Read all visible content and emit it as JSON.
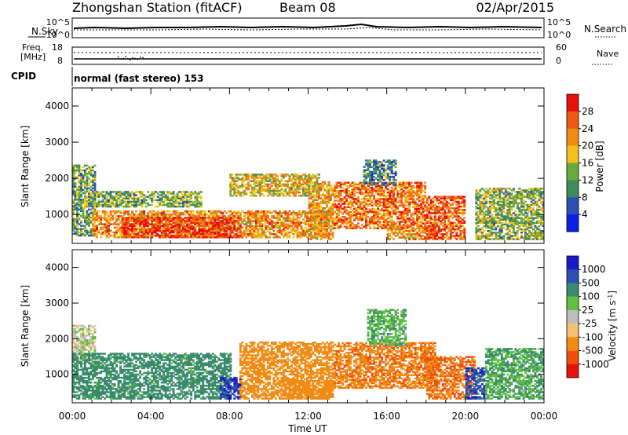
{
  "header": {
    "station": "Zhongshan Station (fitACF)",
    "beam": "Beam 08",
    "date": "02/Apr/2015"
  },
  "top_panels": {
    "nsky_label": "N.Sky",
    "nsky_ticks": [
      "10^5",
      "10^0"
    ],
    "nsky_right_ticks": [
      "10^5",
      "10^0"
    ],
    "nsearch_label": "N.Search",
    "freq_label_1": "Freq.",
    "freq_label_2": "[MHz]",
    "freq_ticks": [
      "18",
      "8"
    ],
    "nave_ticks": [
      "60",
      "0"
    ],
    "nave_label": "Nave",
    "cpid_label": "CPID",
    "cpid_text": "normal (fast stereo) 153"
  },
  "x_axis": {
    "label": "Time UT",
    "ticks": [
      "00:00",
      "04:00",
      "08:00",
      "12:00",
      "16:00",
      "20:00",
      "00:00"
    ]
  },
  "colors": {
    "power_scale": [
      "#0a1ee6",
      "#2c4fb0",
      "#3f8a5c",
      "#6aaa3c",
      "#f2c21a",
      "#f08c14",
      "#f05a10",
      "#e8100c"
    ],
    "velocity_scale": [
      "#e8100c",
      "#f0500e",
      "#f08c14",
      "#f6c070",
      "#bdbdbd",
      "#60c040",
      "#3a8a6e",
      "#2c4fb0",
      "#1a1ac8"
    ]
  },
  "chart_data": [
    {
      "type": "heatmap",
      "name": "power",
      "ylabel": "Slant Range [km]",
      "xlabel": "",
      "xlim": [
        0,
        24
      ],
      "ylim": [
        200,
        4500
      ],
      "y_ticks": [
        "1000",
        "2000",
        "3000",
        "4000"
      ],
      "colorbar": {
        "label": "Power [dB]",
        "ticks": [
          "4",
          "8",
          "12",
          "16",
          "20",
          "24",
          "28"
        ],
        "range": [
          0,
          32
        ]
      },
      "regions": [
        {
          "t0": 0.0,
          "t1": 1.2,
          "r0": 400,
          "r1": 2350,
          "level": 12
        },
        {
          "t0": 0.6,
          "t1": 6.5,
          "r0": 1200,
          "r1": 1650,
          "level": 13
        },
        {
          "t0": 1.0,
          "t1": 13.0,
          "r0": 350,
          "r1": 1100,
          "level": 22
        },
        {
          "t0": 2.5,
          "t1": 8.5,
          "r0": 350,
          "r1": 900,
          "level": 28
        },
        {
          "t0": 8.0,
          "t1": 12.5,
          "r0": 1500,
          "r1": 2100,
          "level": 18
        },
        {
          "t0": 12.0,
          "t1": 13.2,
          "r0": 300,
          "r1": 1900,
          "level": 21
        },
        {
          "t0": 13.3,
          "t1": 18.0,
          "r0": 600,
          "r1": 1900,
          "level": 24
        },
        {
          "t0": 14.8,
          "t1": 16.5,
          "r0": 1800,
          "r1": 2500,
          "level": 10
        },
        {
          "t0": 16.0,
          "t1": 18.5,
          "r0": 300,
          "r1": 700,
          "level": 22
        },
        {
          "t0": 18.0,
          "t1": 20.0,
          "r0": 300,
          "r1": 1500,
          "level": 26
        },
        {
          "t0": 20.5,
          "t1": 24.0,
          "r0": 300,
          "r1": 1700,
          "level": 14
        }
      ]
    },
    {
      "type": "heatmap",
      "name": "velocity",
      "ylabel": "Slant Range [km]",
      "xlabel": "Time UT",
      "xlim": [
        0,
        24
      ],
      "ylim": [
        200,
        4500
      ],
      "y_ticks": [
        "1000",
        "2000",
        "3000",
        "4000"
      ],
      "colorbar": {
        "label": "Velocity [m s^-1]",
        "ticks": [
          "1000",
          "500",
          "100",
          "25",
          "-25",
          "-100",
          "-500",
          "-1000"
        ]
      },
      "regions": [
        {
          "t0": 0.0,
          "t1": 1.2,
          "r0": 1400,
          "r1": 2350,
          "level": 0
        },
        {
          "t0": 0.0,
          "t1": 8.0,
          "r0": 300,
          "r1": 1600,
          "level": 200
        },
        {
          "t0": 7.5,
          "t1": 8.5,
          "r0": 300,
          "r1": 900,
          "level": 1000
        },
        {
          "t0": 8.5,
          "t1": 13.2,
          "r0": 300,
          "r1": 1900,
          "level": -300
        },
        {
          "t0": 10.5,
          "t1": 13.2,
          "r0": 300,
          "r1": 800,
          "level": -200
        },
        {
          "t0": 13.3,
          "t1": 18.5,
          "r0": 600,
          "r1": 1900,
          "level": -400
        },
        {
          "t0": 15.0,
          "t1": 17.0,
          "r0": 1800,
          "r1": 2800,
          "level": 80
        },
        {
          "t0": 18.0,
          "t1": 20.5,
          "r0": 300,
          "r1": 1500,
          "level": -500
        },
        {
          "t0": 20.0,
          "t1": 21.0,
          "r0": 300,
          "r1": 1200,
          "level": 800
        },
        {
          "t0": 21.0,
          "t1": 24.0,
          "r0": 300,
          "r1": 1700,
          "level": 100
        }
      ]
    }
  ]
}
